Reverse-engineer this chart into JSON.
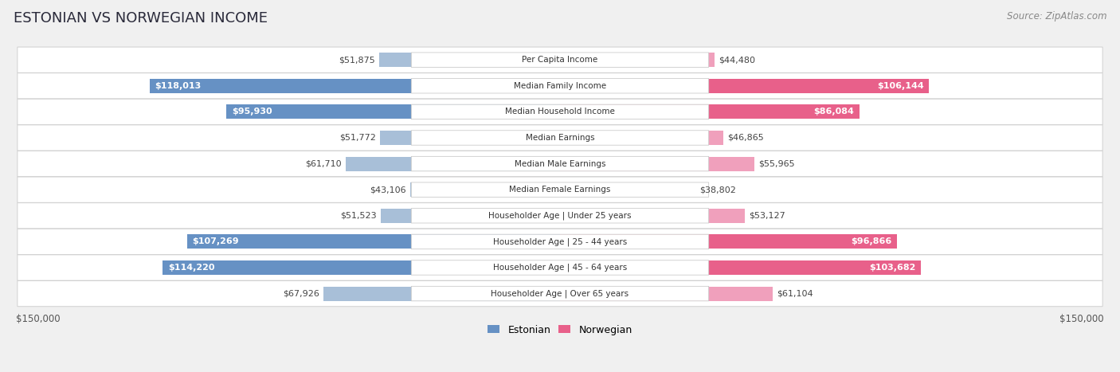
{
  "title": "ESTONIAN VS NORWEGIAN INCOME",
  "source": "Source: ZipAtlas.com",
  "categories": [
    "Per Capita Income",
    "Median Family Income",
    "Median Household Income",
    "Median Earnings",
    "Median Male Earnings",
    "Median Female Earnings",
    "Householder Age | Under 25 years",
    "Householder Age | 25 - 44 years",
    "Householder Age | 45 - 64 years",
    "Householder Age | Over 65 years"
  ],
  "estonian_values": [
    51875,
    118013,
    95930,
    51772,
    61710,
    43106,
    51523,
    107269,
    114220,
    67926
  ],
  "norwegian_values": [
    44480,
    106144,
    86084,
    46865,
    55965,
    38802,
    53127,
    96866,
    103682,
    61104
  ],
  "max_value": 150000,
  "estonian_color_light": "#a8bfd8",
  "estonian_color_dark": "#6691c4",
  "norwegian_color_light": "#f0a0bc",
  "norwegian_color_dark": "#e8608a",
  "bg_color": "#f0f0f0",
  "row_bg_odd": "#ffffff",
  "row_bg_even": "#f8f8f8",
  "label_box_color": "#ffffff",
  "label_box_edge": "#cccccc",
  "title_fontsize": 13,
  "source_fontsize": 8.5,
  "value_fontsize": 8,
  "cat_fontsize": 7.5,
  "legend_fontsize": 9,
  "axis_label_fontsize": 8.5
}
